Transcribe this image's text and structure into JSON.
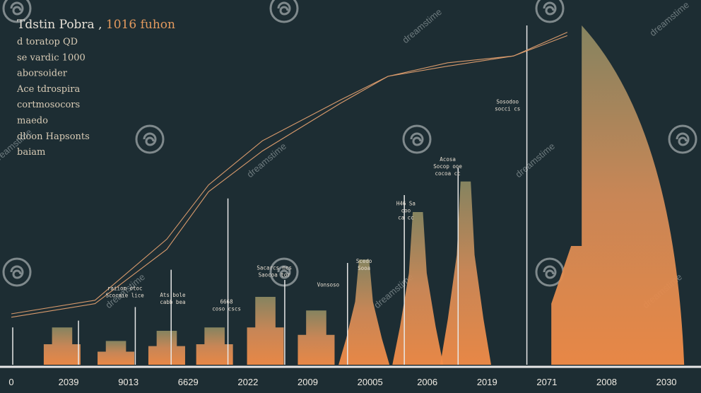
{
  "chart_data": {
    "type": "bar",
    "title": "Tdstin Pobra",
    "title_suffix": "1016 fuhon",
    "legend": [
      "d toratop QD",
      "se vardic 1000",
      "aborsoider",
      "Ace tdrospira",
      "cortmosocors",
      "maedo",
      "dloon Hapsonts",
      "baiam"
    ],
    "x_ticks": [
      "0",
      "2039",
      "9013",
      "6629",
      "2022",
      "2009",
      "20005",
      "2006",
      "2019",
      "2071",
      "2008",
      "2030"
    ],
    "x_tick_positions": [
      0,
      1,
      2,
      3,
      4,
      5,
      6,
      7,
      8,
      9,
      10,
      11
    ],
    "xlim": [
      0,
      11.3
    ],
    "ylim": [
      0,
      100
    ],
    "bars": [
      {
        "x": 0.85,
        "value": 11,
        "style": "city"
      },
      {
        "x": 1.75,
        "value": 7,
        "style": "city"
      },
      {
        "x": 2.6,
        "value": 10,
        "style": "city"
      },
      {
        "x": 3.4,
        "value": 11,
        "style": "city"
      },
      {
        "x": 4.25,
        "value": 20,
        "style": "city"
      },
      {
        "x": 5.1,
        "value": 16,
        "style": "city"
      },
      {
        "x": 5.9,
        "value": 31,
        "style": "spire"
      },
      {
        "x": 6.8,
        "value": 45,
        "style": "spire"
      },
      {
        "x": 7.6,
        "value": 54,
        "style": "spire"
      },
      {
        "x": 9.6,
        "value": 100,
        "style": "dome"
      }
    ],
    "dividers": [
      {
        "x": 0
      },
      {
        "x": 1.1
      },
      {
        "x": 2.05
      },
      {
        "x": 2.65
      },
      {
        "x": 3.6
      },
      {
        "x": 4.55
      },
      {
        "x": 5.6
      },
      {
        "x": 6.55
      },
      {
        "x": 7.45
      },
      {
        "x": 8.6
      }
    ],
    "divider_heights": [
      11,
      13,
      17,
      28,
      49,
      25,
      30,
      50,
      58,
      100
    ],
    "line_series": [
      {
        "x": [
          0,
          1.4,
          2.6,
          3.3,
          4.2,
          5.5,
          6.3,
          7.3,
          8.4,
          9.3
        ],
        "y": [
          14,
          18,
          34,
          51,
          63,
          77,
          85,
          89,
          91,
          98
        ]
      },
      {
        "x": [
          0,
          1.4,
          2.6,
          3.3,
          4.2,
          5.5,
          6.3,
          7.3,
          8.4,
          9.3
        ],
        "y": [
          15,
          19,
          37,
          53,
          66,
          78,
          85,
          88,
          91,
          97
        ]
      }
    ],
    "annotations": [
      {
        "x": 1.9,
        "y": 22,
        "lines": [
          "raiiom otoc",
          "Scocaie lice"
        ]
      },
      {
        "x": 2.7,
        "y": 20,
        "lines": [
          "Ats bole",
          "cabb bea"
        ]
      },
      {
        "x": 3.6,
        "y": 18,
        "lines": [
          "6668",
          "coso cscs"
        ]
      },
      {
        "x": 4.4,
        "y": 28,
        "lines": [
          "Sacarcs ncs",
          "Saocoa tor"
        ]
      },
      {
        "x": 5.3,
        "y": 23,
        "lines": [
          "Vonsoso"
        ]
      },
      {
        "x": 5.9,
        "y": 30,
        "lines": [
          "Scedo",
          "Sooa"
        ]
      },
      {
        "x": 6.6,
        "y": 47,
        "lines": [
          "H46 Sa",
          "coo",
          "ca cc"
        ]
      },
      {
        "x": 7.3,
        "y": 60,
        "lines": [
          "Acosa",
          "Socop ooe",
          "cocoa cc"
        ]
      },
      {
        "x": 8.3,
        "y": 77,
        "lines": [
          "Sosodoo",
          "socci cs"
        ]
      }
    ],
    "grid": false,
    "xlabel": "",
    "ylabel": ""
  },
  "watermark": {
    "text": "dreamstime"
  },
  "colors": {
    "background": "#1d2d33",
    "bar_top": "#8b8862",
    "bar_bottom": "#f28c47",
    "line": "#d89a6c",
    "divider": "#e8e8e8",
    "title": "#e8e2d8",
    "title_accent": "#e39a5e",
    "baseline": "#e8e8e8"
  }
}
